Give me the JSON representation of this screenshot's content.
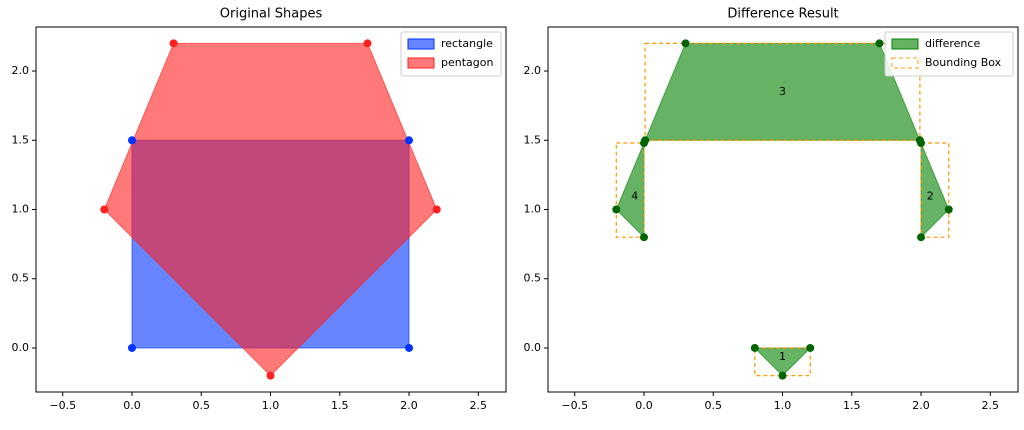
{
  "chart_data": [
    {
      "type": "polygon",
      "title": "Original Shapes",
      "legend": "upper right",
      "xlim": [
        -0.693,
        2.7
      ],
      "ylim": [
        -0.318,
        2.318
      ],
      "xticks": [
        {
          "value": -0.5,
          "label": "−0.5"
        },
        {
          "value": 0,
          "label": "0.0"
        },
        0.5,
        {
          "value": 1,
          "label": "1.0"
        },
        1.5,
        {
          "value": 2,
          "label": "2.0"
        },
        2.5
      ],
      "yticks": [
        {
          "value": 0,
          "label": "0.0"
        },
        0.5,
        {
          "value": 1,
          "label": "1.0"
        },
        1.5,
        {
          "value": 2,
          "label": "2.0"
        }
      ],
      "alpha": 0.6,
      "series": [
        {
          "name": "rectangle",
          "color": "#0033ff",
          "x": [
            0,
            2,
            2,
            0
          ],
          "y": [
            0,
            0,
            1.5,
            1.5
          ]
        },
        {
          "name": "pentagon",
          "color": "#ff2020",
          "x": [
            0.3,
            1.7,
            2.2,
            1,
            -0.2
          ],
          "y": [
            2.2,
            2.2,
            1,
            -0.2,
            1
          ]
        }
      ]
    },
    {
      "type": "polygon",
      "title": "Difference Result",
      "legend": "upper right",
      "xlim": [
        -0.693,
        2.7
      ],
      "ylim": [
        -0.318,
        2.318
      ],
      "xticks": [
        {
          "value": -0.5,
          "label": "−0.5"
        },
        {
          "value": 0,
          "label": "0.0"
        },
        0.5,
        {
          "value": 1,
          "label": "1.0"
        },
        1.5,
        {
          "value": 2,
          "label": "2.0"
        },
        2.5
      ],
      "yticks": [
        {
          "value": 0,
          "label": "0.0"
        },
        0.5,
        {
          "value": 1,
          "label": "1.0"
        },
        1.5,
        {
          "value": 2,
          "label": "2.0"
        }
      ],
      "alpha": 0.6,
      "series": [
        {
          "name": "difference",
          "color": "#008000",
          "polygons": [
            {
              "label": "1",
              "x": [
                0.8,
                1.2,
                1
              ],
              "y": [
                0,
                0,
                -0.2
              ]
            },
            {
              "label": "2",
              "x": [
                2,
                2.2,
                2
              ],
              "y": [
                1.48,
                1,
                0.8
              ]
            },
            {
              "label": "3",
              "x": [
                0.0083,
                0.3,
                1.7,
                1.9917
              ],
              "y": [
                1.5,
                2.2,
                2.2,
                1.5
              ]
            },
            {
              "label": "4",
              "x": [
                0,
                -0.2,
                0
              ],
              "y": [
                1.48,
                1,
                0.8
              ]
            }
          ]
        }
      ],
      "bounding_box": {
        "name": "Bounding Box",
        "color": "#ff9900"
      }
    }
  ]
}
